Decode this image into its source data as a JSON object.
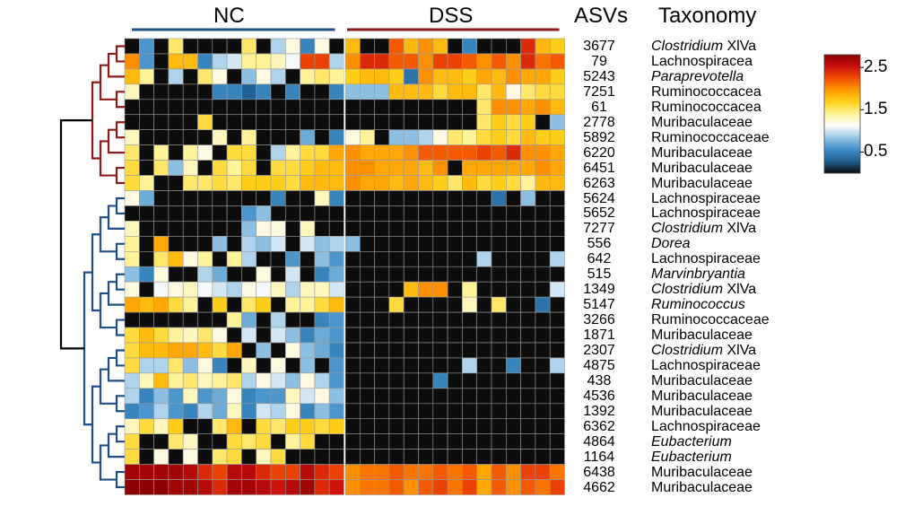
{
  "chart_data": {
    "type": "heatmap",
    "group_labels": [
      "NC",
      "DSS"
    ],
    "column_headers": [
      "ASVs",
      "Taxonomy"
    ],
    "columns_per_group": [
      15,
      15
    ],
    "colorbar": {
      "ticks": [
        "2.5",
        "1.5",
        "0.5"
      ],
      "range": [
        0,
        2.8
      ]
    },
    "colorscale": [
      "#0d0d0d",
      "#1f5e8f",
      "#3f8ec8",
      "#9ac7e6",
      "#fdfdfd",
      "#fff39a",
      "#ffd21a",
      "#ff9b00",
      "#f25000",
      "#c90e0e",
      "#8b0000"
    ],
    "clusters": [
      {
        "name": "",
        "color": "#8b1a1a",
        "rows": [
          0,
          9
        ]
      },
      {
        "name": "",
        "color": "#1f4e85",
        "rows": [
          10,
          29
        ]
      }
    ],
    "rows": [
      {
        "asv": "3677",
        "taxonomy": "Clostridium XlVa",
        "italic_part": "Clostridium",
        "plain_part": " XlVa",
        "values": [
          0,
          0.6,
          0,
          1.5,
          0,
          0,
          0,
          0,
          1.5,
          0,
          0.9,
          1.2,
          0.5,
          1.2,
          0,
          1.8,
          0,
          0,
          2.2,
          1.8,
          2.0,
          1.8,
          0,
          0.5,
          0,
          0,
          0,
          2.4,
          1.8,
          1.7
        ]
      },
      {
        "asv": "79",
        "taxonomy": "Lachnospiracea",
        "italic_part": "",
        "plain_part": "Lachnospiracea",
        "values": [
          2.0,
          0.6,
          0,
          1.8,
          1.8,
          0.5,
          0.9,
          1.0,
          1.4,
          1.4,
          1.3,
          1.1,
          2.3,
          2.3,
          0.9,
          2.0,
          2.4,
          2.4,
          2.2,
          2.2,
          2.0,
          2.3,
          2.3,
          2.2,
          2.0,
          2.2,
          2.0,
          2.4,
          2.1,
          2.2
        ]
      },
      {
        "asv": "5243",
        "taxonomy": "Paraprevotella",
        "italic_part": "Paraprevotella",
        "plain_part": "",
        "values": [
          1.8,
          1.4,
          0,
          0.9,
          0,
          1.5,
          1.2,
          0,
          0.8,
          1.2,
          0.9,
          0,
          1.4,
          1.5,
          1.4,
          1.7,
          1.8,
          1.8,
          1.7,
          0.4,
          2.0,
          1.8,
          1.8,
          1.7,
          1.9,
          1.8,
          2.0,
          1.9,
          1.9,
          1.7
        ]
      },
      {
        "asv": "7251",
        "taxonomy": "Ruminococcacea",
        "italic_part": "",
        "plain_part": "Ruminococcacea",
        "values": [
          1.3,
          0,
          0,
          0,
          0,
          0,
          0.5,
          0.5,
          0.3,
          0.5,
          0,
          0.5,
          0,
          0,
          0.5,
          0.8,
          0.8,
          0.8,
          1.8,
          1.8,
          1.8,
          1.6,
          1.8,
          1.8,
          1.5,
          1.8,
          1.2,
          1.5,
          1.6,
          1.6
        ]
      },
      {
        "asv": "61",
        "taxonomy": "Ruminococcacea",
        "italic_part": "",
        "plain_part": "Ruminococcacea",
        "values": [
          0,
          0,
          0,
          0,
          0,
          0,
          0,
          0,
          0,
          0,
          0,
          0,
          0,
          0,
          0,
          0,
          0,
          0,
          0,
          0,
          0,
          0,
          0,
          0,
          1.5,
          2.0,
          2.0,
          1.9,
          2.0,
          1.8
        ]
      },
      {
        "asv": "2778",
        "taxonomy": "Muribaculaceae",
        "italic_part": "",
        "plain_part": "Muribaculaceae",
        "values": [
          0,
          0,
          0,
          0,
          0,
          1.6,
          0,
          0,
          0,
          0,
          0,
          0,
          0,
          0,
          0,
          0,
          0,
          0,
          0,
          0,
          0,
          0,
          0,
          0,
          1.5,
          1.7,
          1.6,
          1.7,
          0,
          0.8
        ]
      },
      {
        "asv": "5892",
        "taxonomy": "Ruminococcaceae",
        "italic_part": "",
        "plain_part": "Ruminococcaceae",
        "values": [
          1.3,
          0,
          0,
          0,
          0,
          0,
          1.3,
          0,
          1.4,
          0,
          0,
          0,
          0.7,
          0,
          0.5,
          1.2,
          1.4,
          0,
          0.8,
          0.8,
          0.9,
          1.2,
          1.5,
          1.4,
          1.6,
          1.7,
          1.6,
          1.8,
          1.7,
          1.7
        ]
      },
      {
        "asv": "6220",
        "taxonomy": "Muribaculaceae",
        "italic_part": "",
        "plain_part": "Muribaculaceae",
        "values": [
          1.5,
          0,
          1.4,
          0,
          1.4,
          1.2,
          0,
          1.6,
          1.6,
          0,
          0.9,
          1.4,
          1.6,
          1.6,
          1.9,
          2.0,
          1.9,
          1.9,
          1.9,
          2.0,
          2.2,
          2.2,
          2.2,
          2.2,
          2.3,
          2.2,
          2.4,
          2.0,
          2.0,
          1.9
        ]
      },
      {
        "asv": "6451",
        "taxonomy": "Muribaculaceae",
        "italic_part": "",
        "plain_part": "Muribaculaceae",
        "values": [
          1.6,
          0,
          1.5,
          0.8,
          1.3,
          0,
          1.6,
          1.4,
          1.6,
          0,
          1.6,
          1.6,
          1.7,
          1.8,
          1.8,
          2.0,
          2.0,
          1.9,
          1.9,
          1.9,
          1.8,
          2.0,
          0,
          1.9,
          1.9,
          1.9,
          1.9,
          1.9,
          2.0,
          1.9
        ]
      },
      {
        "asv": "6263",
        "taxonomy": "Muribaculaceae",
        "italic_part": "",
        "plain_part": "Muribaculaceae",
        "values": [
          1.6,
          1.4,
          0,
          0,
          1.5,
          1.5,
          1.6,
          1.5,
          1.7,
          1.7,
          1.7,
          1.6,
          1.8,
          1.8,
          1.8,
          2.0,
          1.9,
          1.9,
          1.8,
          1.9,
          1.8,
          1.7,
          1.5,
          1.8,
          1.6,
          1.7,
          1.6,
          1.4,
          1.8,
          1.8
        ]
      },
      {
        "asv": "5624",
        "taxonomy": "Lachnospiraceae",
        "italic_part": "",
        "plain_part": "Lachnospiraceae",
        "values": [
          1.2,
          0.7,
          0,
          0,
          0,
          0,
          0,
          0,
          0,
          0,
          0.5,
          0,
          0,
          1.3,
          0.5,
          0,
          0,
          0,
          0,
          0,
          0,
          0,
          0,
          0,
          0,
          0.4,
          0,
          0.8,
          0,
          0
        ]
      },
      {
        "asv": "5652",
        "taxonomy": "Lachnospiraceae",
        "italic_part": "",
        "plain_part": "Lachnospiraceae",
        "values": [
          0,
          0,
          0,
          0,
          0,
          0,
          0,
          0,
          0.6,
          0.8,
          0,
          0,
          0,
          0,
          0,
          0,
          0,
          0,
          0,
          0,
          0,
          0,
          0,
          0,
          0,
          0,
          0,
          0,
          0,
          0
        ]
      },
      {
        "asv": "7277",
        "taxonomy": "Clostridium XlVa",
        "italic_part": "Clostridium",
        "plain_part": " XlVa",
        "values": [
          1.3,
          0,
          0,
          0,
          0,
          0,
          0,
          0,
          0.8,
          1.2,
          1.2,
          0,
          1.3,
          0,
          0,
          0,
          0,
          0,
          0,
          0,
          0,
          0,
          0,
          0,
          0,
          0,
          0,
          0,
          0,
          0
        ]
      },
      {
        "asv": "556",
        "taxonomy": "Dorea",
        "italic_part": "Dorea",
        "plain_part": "",
        "values": [
          1.4,
          0,
          1.9,
          0,
          0,
          0,
          0.8,
          0,
          0.9,
          0.8,
          1.0,
          0,
          1.0,
          0.8,
          0.9,
          0.8,
          0,
          0,
          0,
          0,
          0,
          0,
          0,
          0,
          0,
          0,
          0,
          0,
          0,
          0
        ]
      },
      {
        "asv": "642",
        "taxonomy": "Lachnospiraceae",
        "italic_part": "",
        "plain_part": "Lachnospiraceae",
        "values": [
          1.4,
          0,
          1.5,
          1.8,
          1.2,
          1.4,
          0,
          1.4,
          0.9,
          0,
          0,
          0.6,
          0,
          0.8,
          0.6,
          0,
          0,
          0,
          0,
          0,
          0,
          0,
          0,
          0,
          0.9,
          0,
          0,
          0,
          0,
          0.9
        ]
      },
      {
        "asv": "515",
        "taxonomy": "Marvinbryantia",
        "italic_part": "Marvinbryantia",
        "plain_part": "",
        "values": [
          0.8,
          0.5,
          1.2,
          0,
          0,
          0.9,
          0.7,
          0,
          0,
          1.2,
          0,
          1.0,
          0,
          0.5,
          0.7,
          0,
          0,
          0,
          0,
          0,
          0,
          0,
          0,
          0,
          0,
          0,
          0,
          0,
          0,
          0
        ]
      },
      {
        "asv": "1349",
        "taxonomy": "Clostridium XlVa",
        "italic_part": "Clostridium",
        "plain_part": " XlVa",
        "values": [
          1.2,
          0,
          1.1,
          1.2,
          1.3,
          1.1,
          1.0,
          0.9,
          1.2,
          1.1,
          1.3,
          0.9,
          1.3,
          1.3,
          1.0,
          0,
          0,
          0,
          0,
          1.8,
          2.0,
          2.0,
          0,
          1.4,
          0,
          0,
          0,
          0,
          0,
          1.0
        ]
      },
      {
        "asv": "5147",
        "taxonomy": "Ruminococcus",
        "italic_part": "Ruminococcus",
        "plain_part": "",
        "values": [
          1.9,
          1.8,
          1.9,
          1.6,
          1.4,
          0,
          1.7,
          0,
          1.5,
          1.7,
          0,
          1.4,
          1.4,
          1.6,
          1.8,
          0,
          0,
          0,
          1.6,
          0,
          0,
          0,
          0,
          1.3,
          0,
          1.5,
          0,
          0,
          0.4,
          0
        ]
      },
      {
        "asv": "3266",
        "taxonomy": "Ruminococcaceae",
        "italic_part": "",
        "plain_part": "Ruminococcaceae",
        "values": [
          0,
          0,
          0,
          0,
          0,
          0,
          0,
          1.4,
          0.7,
          0,
          0.9,
          0,
          0,
          0.5,
          0.6,
          0,
          0,
          0,
          0,
          0,
          0,
          0,
          0,
          0,
          0,
          0,
          0,
          0,
          0,
          0
        ]
      },
      {
        "asv": "1871",
        "taxonomy": "Muribaculaceae",
        "italic_part": "",
        "plain_part": "Muribaculaceae",
        "values": [
          1.6,
          1.8,
          1.6,
          1.4,
          1.3,
          1.5,
          1.2,
          0,
          1.0,
          0,
          1.0,
          0.8,
          0.5,
          0.7,
          0.6,
          0,
          0,
          0,
          0,
          0,
          0,
          0,
          0,
          0,
          0,
          0,
          0,
          0,
          0,
          0
        ]
      },
      {
        "asv": "2307",
        "taxonomy": "Clostridium XlVa",
        "italic_part": "Clostridium",
        "plain_part": " XlVa",
        "values": [
          1.6,
          1.8,
          1.8,
          1.9,
          1.9,
          1.8,
          1.6,
          1.9,
          0,
          0.8,
          0,
          1.2,
          0.8,
          0.7,
          0.5,
          0,
          0,
          0,
          0,
          0,
          0,
          0,
          0,
          0,
          0,
          0,
          0,
          0,
          0,
          0
        ]
      },
      {
        "asv": "4875",
        "taxonomy": "Lachnospiraceae",
        "italic_part": "",
        "plain_part": "Lachnospiraceae",
        "values": [
          1.6,
          0.9,
          0.9,
          1.5,
          0.8,
          1.2,
          0.5,
          0,
          1.3,
          0,
          1.2,
          0,
          0.8,
          0,
          0.6,
          0,
          0,
          0,
          0,
          0,
          0,
          0,
          0,
          0.9,
          0,
          0,
          0.5,
          0,
          0,
          0.9
        ]
      },
      {
        "asv": "438",
        "taxonomy": "Muribaculaceae",
        "italic_part": "",
        "plain_part": "Muribaculaceae",
        "values": [
          0.9,
          1.3,
          1.8,
          1.4,
          1.5,
          1.3,
          1.4,
          1.5,
          0.9,
          1.2,
          1.0,
          0.8,
          1.2,
          0.9,
          0.6,
          0,
          0,
          0,
          0,
          0,
          0,
          0.5,
          0,
          0,
          0,
          0,
          0,
          0,
          0,
          0
        ]
      },
      {
        "asv": "4536",
        "taxonomy": "Muribaculaceae",
        "italic_part": "",
        "plain_part": "Muribaculaceae",
        "values": [
          0.9,
          0.5,
          0.8,
          0.6,
          1.3,
          0.6,
          0.7,
          1.2,
          0.5,
          0.6,
          0.6,
          1.3,
          1.0,
          1.2,
          0.8,
          0,
          0,
          0,
          0,
          0,
          0,
          0,
          0,
          0,
          0,
          0,
          0,
          0,
          0,
          0
        ]
      },
      {
        "asv": "1392",
        "taxonomy": "Muribaculaceae",
        "italic_part": "",
        "plain_part": "Muribaculaceae",
        "values": [
          0.5,
          0.6,
          0.9,
          0.6,
          0.5,
          0.9,
          0.7,
          1.3,
          0.5,
          1.0,
          0.9,
          1.2,
          0.5,
          0.8,
          0.6,
          0,
          0,
          0,
          0,
          0,
          0,
          0,
          0,
          0,
          0,
          0,
          0,
          0,
          0,
          0
        ]
      },
      {
        "asv": "6362",
        "taxonomy": "Lachnospiraceae",
        "italic_part": "",
        "plain_part": "Lachnospiraceae",
        "values": [
          1.3,
          1.6,
          1.3,
          1.7,
          0,
          0,
          1.5,
          1.8,
          0,
          1.6,
          1.5,
          1.7,
          1.7,
          1.6,
          1.7,
          0,
          0,
          0,
          0,
          0,
          0,
          0,
          0,
          0,
          0,
          0,
          0,
          0,
          0,
          0
        ]
      },
      {
        "asv": "4864",
        "taxonomy": "Eubacterium",
        "italic_part": "Eubacterium",
        "plain_part": "",
        "values": [
          1.6,
          0,
          0,
          1.5,
          1.3,
          0,
          0,
          1.6,
          1.5,
          1.6,
          0,
          1.4,
          1.6,
          0,
          0,
          0,
          0,
          0,
          0,
          0,
          0,
          0,
          0,
          0,
          0,
          0,
          0,
          0,
          0,
          0
        ]
      },
      {
        "asv": "1164",
        "taxonomy": "Eubacterium",
        "italic_part": "Eubacterium",
        "plain_part": "",
        "values": [
          1.6,
          0,
          1.2,
          0,
          1.2,
          0,
          1.5,
          1.6,
          0,
          1.3,
          1.6,
          0,
          0,
          0,
          0,
          0,
          0,
          0,
          0,
          0,
          0,
          0,
          0,
          0,
          0,
          0,
          0,
          0,
          0,
          0
        ]
      },
      {
        "asv": "6438",
        "taxonomy": "Muribaculaceae",
        "italic_part": "",
        "plain_part": "Muribaculaceae",
        "values": [
          2.7,
          2.7,
          2.7,
          2.7,
          2.6,
          2.4,
          2.3,
          2.6,
          2.6,
          2.4,
          2.3,
          2.3,
          2.6,
          2.4,
          2.3,
          2.0,
          2.1,
          2.1,
          2.2,
          2.1,
          2.1,
          2.2,
          2.1,
          2.2,
          1.9,
          2.2,
          2.0,
          2.3,
          2.3,
          2.1
        ]
      },
      {
        "asv": "4662",
        "taxonomy": "Muribaculaceae",
        "italic_part": "",
        "plain_part": "Muribaculaceae",
        "values": [
          2.8,
          2.8,
          2.8,
          2.7,
          2.7,
          2.6,
          2.4,
          2.7,
          2.7,
          2.6,
          2.5,
          2.6,
          2.7,
          2.4,
          2.5,
          2.0,
          2.1,
          2.1,
          2.2,
          2.0,
          2.2,
          2.3,
          2.1,
          2.3,
          1.9,
          2.2,
          2.0,
          2.2,
          2.1,
          2.3
        ]
      }
    ]
  }
}
